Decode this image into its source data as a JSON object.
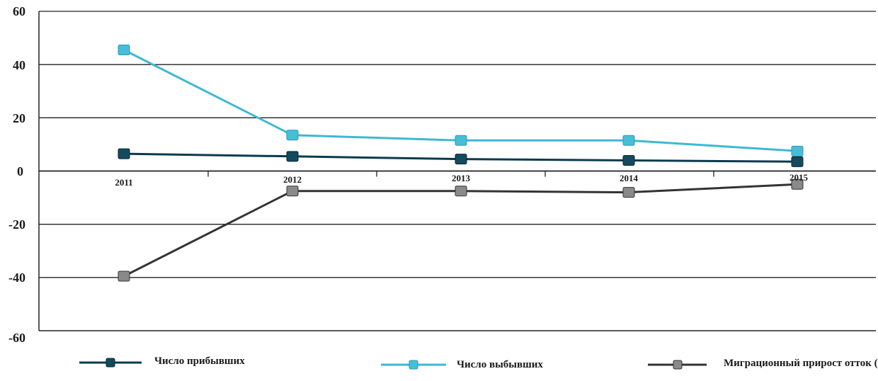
{
  "chart_data": {
    "type": "line",
    "title": "",
    "xlabel": "",
    "ylabel": "",
    "categories": [
      "2011",
      "2012",
      "2013",
      "2014",
      "2015"
    ],
    "yticks": [
      "60",
      "40",
      "20",
      "0",
      "-20",
      "-40",
      "-60"
    ],
    "ylim": [
      -60,
      60
    ],
    "grid": true,
    "legend_position": "bottom",
    "series": [
      {
        "name": "Число прибывших",
        "values": [
          6.5,
          5.5,
          4.5,
          4.0,
          3.5
        ],
        "color": "#0b3a4e",
        "marker_color": "#134a5f"
      },
      {
        "name": "Число выбывших",
        "values": [
          45.5,
          13.5,
          11.5,
          11.5,
          7.5
        ],
        "color": "#3fb8d4",
        "marker_color": "#47bdd6"
      },
      {
        "name": "Миграционный прирост отток (-)",
        "values": [
          -39.5,
          -7.5,
          -7.5,
          -8.0,
          -5.0
        ],
        "color": "#333333",
        "marker_color": "#8a8a8a"
      }
    ]
  }
}
